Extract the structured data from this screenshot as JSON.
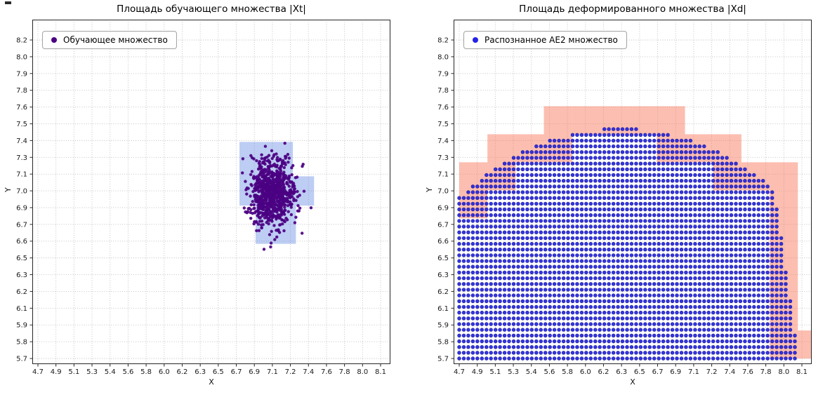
{
  "figure": {
    "background": "#ffffff"
  },
  "window": {
    "artifact_mark": "_"
  },
  "chart_data": [
    {
      "type": "scatter",
      "title": "Площадь обучающего множества |Xt|",
      "xlabel": "X",
      "ylabel": "Y",
      "grid": true,
      "grid_color": "#bdbdbd",
      "legend": {
        "label": "Обучающее множество",
        "marker_color": "#4b0082",
        "position": "upper left"
      },
      "x_tick_labels": [
        "4.7",
        "4.9",
        "5.1",
        "5.3",
        "5.4",
        "5.6",
        "5.8",
        "6.0",
        "6.2",
        "6.3",
        "6.5",
        "6.7",
        "6.9",
        "7.1",
        "7.2",
        "7.4",
        "7.6",
        "7.8",
        "8.0",
        "8.1"
      ],
      "y_tick_labels": [
        "5.7",
        "5.8",
        "5.9",
        "6.1",
        "6.2",
        "6.3",
        "6.5",
        "6.6",
        "6.7",
        "6.9",
        "7.0",
        "7.1",
        "7.3",
        "7.4",
        "7.5",
        "7.6",
        "7.8",
        "7.9",
        "8.0",
        "8.2"
      ],
      "xlim": [
        4.7,
        8.1
      ],
      "ylim": [
        5.7,
        8.2
      ],
      "cells": {
        "color": "rgba(90,130,225,0.40)",
        "rects": [
          {
            "x": 6.7,
            "y": 6.9,
            "w": 0.53,
            "h": 0.5
          },
          {
            "x": 7.23,
            "y": 6.9,
            "w": 0.21,
            "h": 0.23
          },
          {
            "x": 6.86,
            "y": 6.6,
            "w": 0.4,
            "h": 0.3
          }
        ]
      },
      "cluster": {
        "center": [
          7.02,
          7.0
        ],
        "std": [
          0.115,
          0.135
        ],
        "n": 800,
        "seed": 42,
        "color": "#4b0082",
        "marker_radius": 2.2
      }
    },
    {
      "type": "scatter",
      "title": "Площадь деформированного множества |Xd|",
      "xlabel": "X",
      "ylabel": "Y",
      "grid": true,
      "grid_color": "#bdbdbd",
      "legend": {
        "label": "Распознанное AE2 множество",
        "marker_color": "#2323e8",
        "position": "upper left"
      },
      "x_tick_labels": [
        "4.7",
        "4.9",
        "5.1",
        "5.3",
        "5.4",
        "5.6",
        "5.8",
        "6.0",
        "6.2",
        "6.3",
        "6.5",
        "6.7",
        "6.9",
        "7.1",
        "7.2",
        "7.4",
        "7.6",
        "7.8",
        "8.0",
        "8.1"
      ],
      "y_tick_labels": [
        "5.7",
        "5.8",
        "5.9",
        "6.1",
        "6.2",
        "6.3",
        "6.5",
        "6.6",
        "6.7",
        "6.9",
        "7.0",
        "7.1",
        "7.3",
        "7.4",
        "7.5",
        "7.6",
        "7.8",
        "7.9",
        "8.0",
        "8.2"
      ],
      "xlim": [
        4.7,
        8.1
      ],
      "ylim": [
        5.7,
        8.2
      ],
      "region": {
        "shape": "dome",
        "center": [
          6.3,
          4.85
        ],
        "radius": 2.655,
        "apex": [
          6.3,
          7.5
        ],
        "right_clip": {
          "x0": 8.07,
          "y0": 5.7,
          "slope": -0.185
        },
        "lattice_origin": [
          4.7,
          5.7
        ],
        "lattice_max": [
          8.12,
          7.55
        ],
        "dot_spacing": 0.045,
        "dot_radius": 2.4,
        "dot_color": "#2424e0",
        "dot_edge": "#1a1a9a",
        "boundary_cells": {
          "color": "rgba(248,120,90,0.48)",
          "origin": [
            4.7,
            5.7
          ],
          "w": 0.28,
          "h": 0.22,
          "cols": 14,
          "rows": 10
        }
      }
    }
  ]
}
